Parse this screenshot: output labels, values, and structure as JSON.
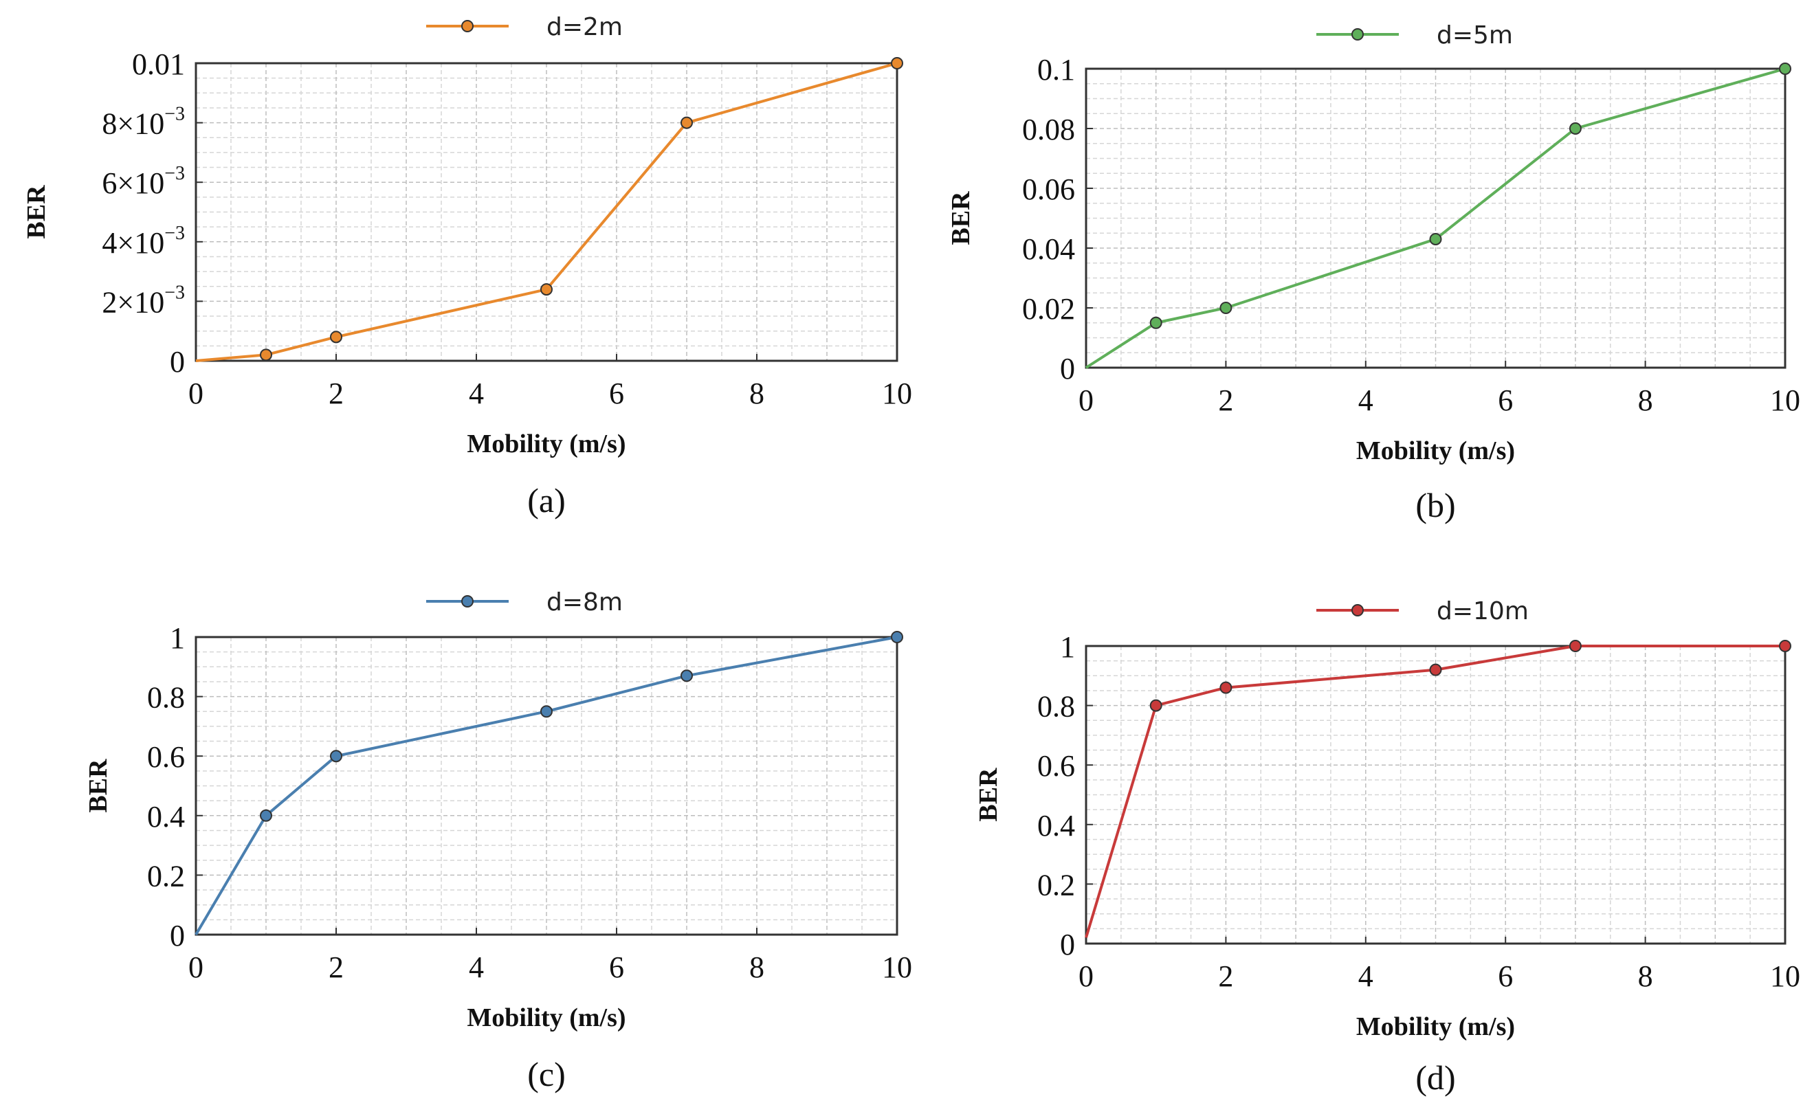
{
  "chart_data": [
    {
      "id": "a",
      "type": "line",
      "caption": "(a)",
      "legend": "d=2m",
      "color": "#E8892D",
      "xlabel": "Mobility (m/s)",
      "ylabel": "BER",
      "xlim": [
        0,
        10
      ],
      "ylim": [
        0,
        0.01
      ],
      "xticks": [
        0,
        2,
        4,
        6,
        8,
        10
      ],
      "xtick_labels": [
        "0",
        "2",
        "4",
        "6",
        "8",
        "10"
      ],
      "yticks": [
        0,
        0.002,
        0.004,
        0.006,
        0.008,
        0.01
      ],
      "ytick_labels": [
        {
          "base": "0",
          "exp": ""
        },
        {
          "base": "2×10",
          "exp": "−3"
        },
        {
          "base": "4×10",
          "exp": "−3"
        },
        {
          "base": "6×10",
          "exp": "−3"
        },
        {
          "base": "8×10",
          "exp": "−3"
        },
        {
          "base": "0.01",
          "exp": ""
        }
      ],
      "x": [
        0,
        1,
        2,
        5,
        7,
        10
      ],
      "y": [
        0,
        0.0002,
        0.0008,
        0.0024,
        0.008,
        0.01
      ],
      "marker_x": [
        1,
        2,
        5,
        7,
        10
      ],
      "marker_y": [
        0.0002,
        0.0008,
        0.0024,
        0.008,
        0.01
      ],
      "grid": true
    },
    {
      "id": "b",
      "type": "line",
      "caption": "(b)",
      "legend": "d=5m",
      "color": "#5FAF5A",
      "xlabel": "Mobility (m/s)",
      "ylabel": "BER",
      "xlim": [
        0,
        10
      ],
      "ylim": [
        0,
        0.1
      ],
      "xticks": [
        0,
        2,
        4,
        6,
        8,
        10
      ],
      "xtick_labels": [
        "0",
        "2",
        "4",
        "6",
        "8",
        "10"
      ],
      "yticks": [
        0,
        0.02,
        0.04,
        0.06,
        0.08,
        0.1
      ],
      "ytick_labels": [
        {
          "base": "0",
          "exp": ""
        },
        {
          "base": "0.02",
          "exp": ""
        },
        {
          "base": "0.04",
          "exp": ""
        },
        {
          "base": "0.06",
          "exp": ""
        },
        {
          "base": "0.08",
          "exp": ""
        },
        {
          "base": "0.1",
          "exp": ""
        }
      ],
      "x": [
        0,
        1,
        2,
        5,
        7,
        10
      ],
      "y": [
        0,
        0.015,
        0.02,
        0.043,
        0.08,
        0.1
      ],
      "marker_x": [
        1,
        2,
        5,
        7,
        10
      ],
      "marker_y": [
        0.015,
        0.02,
        0.043,
        0.08,
        0.1
      ],
      "grid": true
    },
    {
      "id": "c",
      "type": "line",
      "caption": "(c)",
      "legend": "d=8m",
      "color": "#4A7FAF",
      "xlabel": "Mobility (m/s)",
      "ylabel": "BER",
      "xlim": [
        0,
        10
      ],
      "ylim": [
        0,
        1
      ],
      "xticks": [
        0,
        2,
        4,
        6,
        8,
        10
      ],
      "xtick_labels": [
        "0",
        "2",
        "4",
        "6",
        "8",
        "10"
      ],
      "yticks": [
        0,
        0.2,
        0.4,
        0.6,
        0.8,
        1
      ],
      "ytick_labels": [
        {
          "base": "0",
          "exp": ""
        },
        {
          "base": "0.2",
          "exp": ""
        },
        {
          "base": "0.4",
          "exp": ""
        },
        {
          "base": "0.6",
          "exp": ""
        },
        {
          "base": "0.8",
          "exp": ""
        },
        {
          "base": "1",
          "exp": ""
        }
      ],
      "x": [
        0,
        1,
        2,
        5,
        7,
        10
      ],
      "y": [
        0,
        0.4,
        0.6,
        0.75,
        0.87,
        1.0
      ],
      "marker_x": [
        1,
        2,
        5,
        7,
        10
      ],
      "marker_y": [
        0.4,
        0.6,
        0.75,
        0.87,
        1.0
      ],
      "grid": true
    },
    {
      "id": "d",
      "type": "line",
      "caption": "(d)",
      "legend": "d=10m",
      "color": "#C83A3A",
      "xlabel": "Mobility (m/s)",
      "ylabel": "BER",
      "xlim": [
        0,
        10
      ],
      "ylim": [
        0,
        1
      ],
      "xticks": [
        0,
        2,
        4,
        6,
        8,
        10
      ],
      "xtick_labels": [
        "0",
        "2",
        "4",
        "6",
        "8",
        "10"
      ],
      "yticks": [
        0,
        0.2,
        0.4,
        0.6,
        0.8,
        1
      ],
      "ytick_labels": [
        {
          "base": "0",
          "exp": ""
        },
        {
          "base": "0.2",
          "exp": ""
        },
        {
          "base": "0.4",
          "exp": ""
        },
        {
          "base": "0.6",
          "exp": ""
        },
        {
          "base": "0.8",
          "exp": ""
        },
        {
          "base": "1",
          "exp": ""
        }
      ],
      "x": [
        0,
        1,
        2,
        5,
        7,
        10
      ],
      "y": [
        0.02,
        0.8,
        0.86,
        0.92,
        1.0,
        1.0
      ],
      "marker_x": [
        1,
        2,
        5,
        7,
        10
      ],
      "marker_y": [
        0.8,
        0.86,
        0.92,
        1.0,
        1.0
      ],
      "grid": true
    }
  ]
}
